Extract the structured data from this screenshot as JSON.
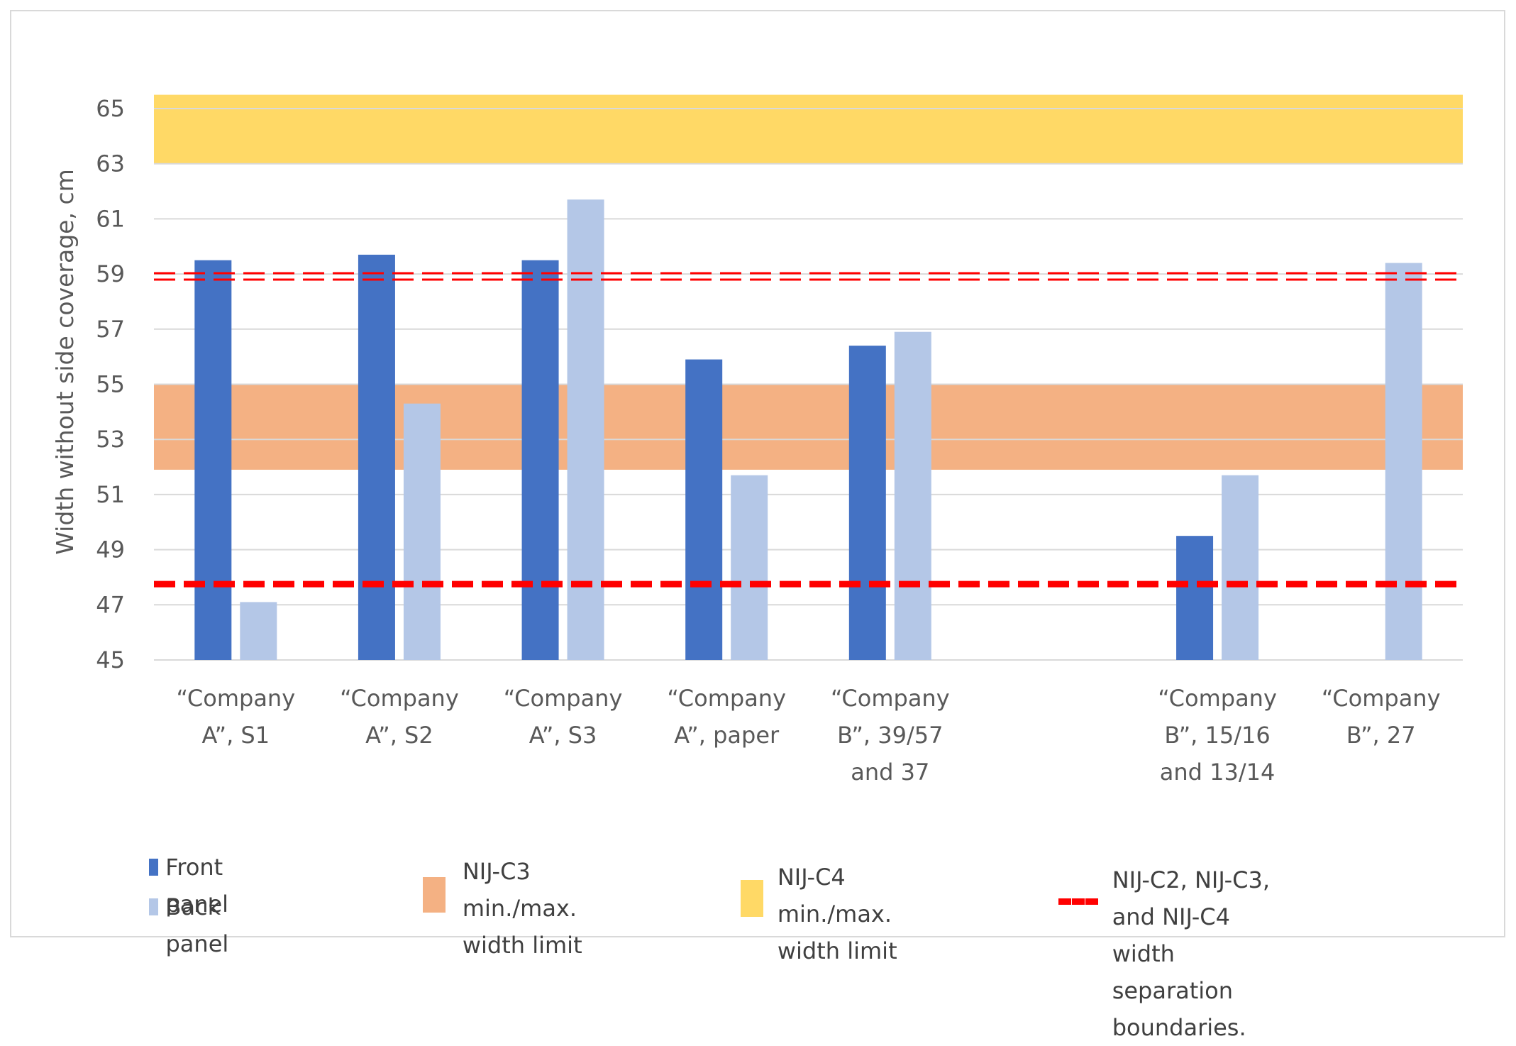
{
  "chart_data": {
    "type": "bar",
    "ylabel": "Width without side coverage, cm",
    "ylim": [
      45,
      65
    ],
    "yticks": [
      "45",
      "47",
      "49",
      "51",
      "53",
      "55",
      "57",
      "59",
      "61",
      "63",
      "65"
    ],
    "categories": [
      [
        "“Company",
        "A”, S1"
      ],
      [
        "“Company",
        "A”, S2"
      ],
      [
        "“Company",
        "A”, S3"
      ],
      [
        "“Company",
        "A”, paper"
      ],
      [
        "“Company",
        "B”, 39/57",
        "and 37"
      ],
      [],
      [
        "“Company",
        "B”, 15/16",
        "and 13/14"
      ],
      [
        "“Company",
        "B”, 27"
      ]
    ],
    "series": [
      {
        "name": "Front panel",
        "color": "#4472c4",
        "values": [
          59.5,
          59.7,
          59.5,
          55.9,
          56.4,
          null,
          49.5,
          null
        ]
      },
      {
        "name": "Back panel",
        "color": "#b4c7e7",
        "values": [
          47.1,
          54.3,
          61.7,
          51.7,
          56.9,
          null,
          51.7,
          59.4
        ]
      }
    ],
    "bands": [
      {
        "name": "NIJ-C3 min./max. width limit",
        "from": 51.9,
        "to": 55.0,
        "color": "#f4b183"
      },
      {
        "name": "NIJ-C4 min./max. width limit",
        "from": 63.0,
        "to": 65.5,
        "color": "#ffd966"
      }
    ],
    "boundaries": {
      "name": "NIJ-C2, NIJ-C3, and NIJ-C4 width separation boundaries.",
      "color": "#ff0000",
      "values": [
        47.75,
        58.9
      ]
    },
    "grid": true,
    "legend_position": "bottom"
  },
  "legend": {
    "front": "Front panel",
    "back": "Back panel",
    "c3_line1": "NIJ-C3 min./max.",
    "c3_line2": "width limit",
    "c4_line1": "NIJ-C4 min./max.",
    "c4_line2": "width limit",
    "sep_line1": "NIJ-C2, NIJ-C3, and NIJ-C4",
    "sep_line2": "width separation boundaries."
  }
}
